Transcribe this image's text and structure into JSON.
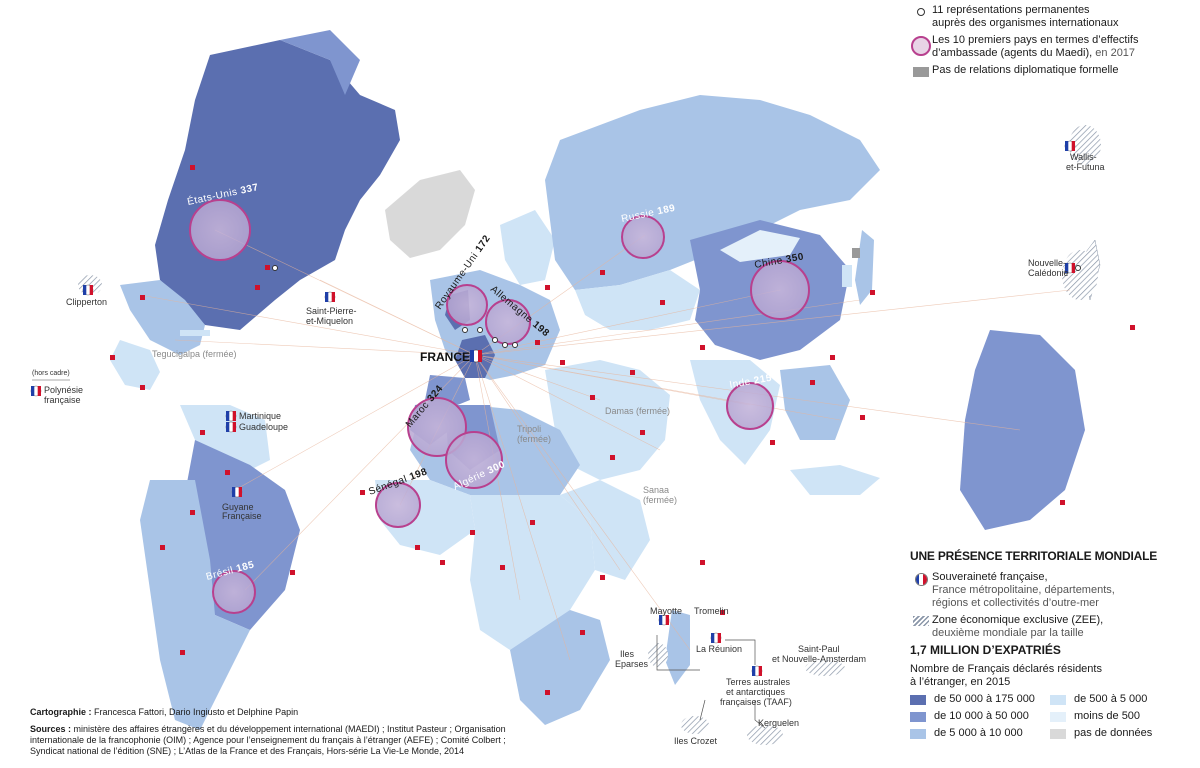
{
  "map": {
    "country_labels": {
      "usa": "États-Unis",
      "usa_n": "337",
      "uk": "Royaume-Uni",
      "uk_n": "172",
      "germany": "Allemagne",
      "germany_n": "198",
      "russia": "Russie",
      "russia_n": "189",
      "china": "Chine",
      "china_n": "350",
      "india": "Inde",
      "india_n": "215",
      "morocco": "Maroc",
      "morocco_n": "324",
      "algeria": "Algérie",
      "algeria_n": "300",
      "senegal": "Sénégal",
      "senegal_n": "198",
      "brazil": "Brésil",
      "brazil_n": "185"
    },
    "france_label": "FRANCE",
    "closed_labels": {
      "tegucigalpa": "Tegucigalpa (fermée)",
      "damas": "Damas (fermée)",
      "tripoli_1": "Tripoli",
      "tripoli_2": "(fermée)",
      "sanaa_1": "Sanaa",
      "sanaa_2": "(fermée)"
    },
    "territory_labels": {
      "clipperton": "Clipperton",
      "spm_1": "Saint-Pierre-",
      "spm_2": "et-Miquelon",
      "hors_cadre": "(hors cadre)",
      "polynesie_1": "Polynésie",
      "polynesie_2": "française",
      "martinique": "Martinique",
      "guadeloupe": "Guadeloupe",
      "guyane_1": "Guyane",
      "guyane_2": "Française",
      "wallis_1": "Wallis-",
      "wallis_2": "et-Futuna",
      "nc_1": "Nouvelle-",
      "nc_2": "Calédonie",
      "mayotte": "Mayotte",
      "tromelin": "Tromelin",
      "iles_eparses_1": "Iles",
      "iles_eparses_2": "Eparses",
      "reunion": "La Réunion",
      "taaf_1": "Terres australes",
      "taaf_2": "et antarctiques",
      "taaf_3": "françaises (TAAF)",
      "saint_paul_1": "Saint-Paul",
      "saint_paul_2": "et Nouvelle-Amsterdam",
      "kerguelen": "Kerguelen",
      "crozet": "Iles Crozet"
    }
  },
  "legend_top": {
    "item1_line1": "11 représentations permanentes",
    "item1_line2": "auprès des organismes internationaux",
    "item2_line1": "Les 10 premiers pays en termes d’effectifs",
    "item2_line2": "d’ambassade (agents du Maedi),",
    "item2_year": "en 2017",
    "item3": "Pas de relations diplomatique formelle"
  },
  "legend_bottom": {
    "title": "UNE PRÉSENCE TERRITORIALE MONDIALE",
    "sov_line1": "Souveraineté française,",
    "sov_line2": "France métropolitaine, départements,",
    "sov_line3": "régions et collectivités d’outre-mer",
    "zee_line1": "Zone économique exclusive (ZEE),",
    "zee_line2": "deuxième mondiale par la taille",
    "expat_title": "1,7 MILLION D’EXPATRIÉS",
    "expat_sub1": "Nombre de Français déclarés résidents",
    "expat_sub2": "à l’étranger, en 2015",
    "scale": [
      {
        "label": "de 50 000 à 175 000",
        "color": "#5b6fb0"
      },
      {
        "label": "de 500 à 5 000",
        "color": "#cfe4f6"
      },
      {
        "label": "de 10 000 à 50 000",
        "color": "#7f95cf"
      },
      {
        "label": "moins de 500",
        "color": "#e4f0fa"
      },
      {
        "label": "de 5 000 à 10 000",
        "color": "#a9c4e7"
      },
      {
        "label": "pas de données",
        "color": "#d9d9d9"
      }
    ]
  },
  "credits": {
    "carto_label": "Cartographie :",
    "carto_names": "Francesca Fattori, Dario Ingiusto et Delphine Papin",
    "sources_label": "Sources :",
    "sources_line1": "ministère des affaires étrangères et du développement international (MAEDI) ; Institut Pasteur ; Organisation",
    "sources_line2": "internationale de la francophonie (OIM) ; Agence pour l’enseignement du français à l’étranger (AEFE) ; Comité Colbert ;",
    "sources_line3": "Syndicat national de l’édition (SNE) ; L’Atlas de la France et des Français, Hors-série La Vie-Le Monde, 2014"
  },
  "colors": {
    "dark": "#5b6fb0",
    "mid": "#7f95cf",
    "light": "#a9c4e7",
    "pale": "#cfe4f6",
    "palest": "#e4f0fa",
    "nodata": "#d9d9d9",
    "nodiplo": "#999999",
    "ring": "#b8408e",
    "embassy": "#d0112b"
  }
}
